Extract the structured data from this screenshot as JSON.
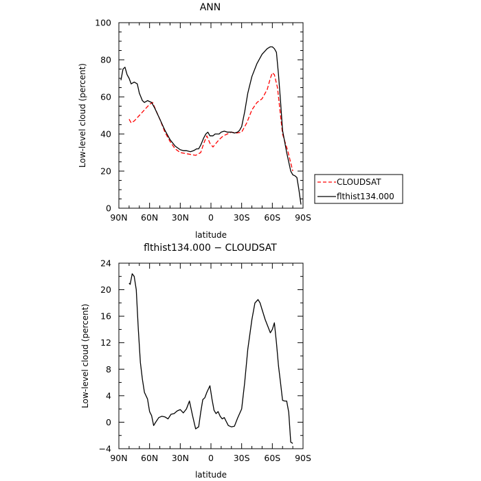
{
  "chart_data": [
    {
      "type": "line",
      "title": "ANN",
      "xlabel": "latitude",
      "ylabel": "Low-level cloud (percent)",
      "xlim": [
        90,
        -90
      ],
      "ylim": [
        0,
        100
      ],
      "x_ticks": [
        90,
        60,
        30,
        0,
        -30,
        -60,
        -90
      ],
      "x_tick_labels": [
        "90N",
        "60N",
        "30N",
        "0",
        "30S",
        "60S",
        "90S"
      ],
      "y_ticks": [
        0,
        20,
        40,
        60,
        80,
        100
      ],
      "y_tick_labels": [
        "0",
        "20",
        "40",
        "60",
        "80",
        "100"
      ],
      "legend_position": "right",
      "series": [
        {
          "name": "CLOUDSAT",
          "style": "dashed",
          "color": "#ff0000",
          "x": [
            80,
            78,
            75,
            70,
            65,
            60,
            57,
            54,
            50,
            45,
            40,
            35,
            30,
            25,
            20,
            15,
            10,
            7,
            4,
            1,
            -2,
            -5,
            -8,
            -12,
            -16,
            -20,
            -25,
            -30,
            -35,
            -40,
            -45,
            -50,
            -55,
            -58,
            -60,
            -62,
            -65,
            -70,
            -75,
            -80
          ],
          "y": [
            48,
            46,
            47,
            50,
            53,
            56,
            57,
            53,
            48,
            41,
            36,
            32,
            30,
            29.5,
            29,
            28.5,
            30,
            35,
            39,
            35,
            33,
            35,
            37,
            39,
            40,
            41,
            40.5,
            41,
            46,
            53,
            57,
            59,
            64,
            70,
            73,
            72,
            65,
            40,
            31,
            20
          ]
        },
        {
          "name": "flthist134.000",
          "style": "solid",
          "color": "#000000",
          "x": [
            88,
            86,
            84,
            82,
            80,
            78,
            75,
            72,
            70,
            67,
            65,
            62,
            58,
            55,
            50,
            45,
            40,
            35,
            30,
            27,
            24,
            20,
            17,
            14,
            12,
            10,
            7,
            5,
            3,
            1,
            -2,
            -4,
            -6,
            -8,
            -10,
            -13,
            -16,
            -20,
            -23,
            -26,
            -28,
            -30,
            -33,
            -36,
            -40,
            -45,
            -50,
            -55,
            -58,
            -60,
            -62,
            -64,
            -66,
            -68,
            -70,
            -74,
            -78,
            -80,
            -82,
            -84,
            -86,
            -88
          ],
          "y": [
            69,
            75,
            76,
            72,
            70,
            67,
            68,
            67,
            62,
            58,
            57,
            58,
            57,
            54,
            48,
            42,
            37,
            33.5,
            31.5,
            31,
            31,
            30.5,
            31,
            32,
            32,
            34,
            38,
            40,
            41,
            39,
            39,
            40,
            40,
            40,
            41,
            41.5,
            41,
            41,
            40.5,
            41,
            42,
            44,
            52,
            62,
            71,
            78,
            83,
            86,
            87,
            87,
            86,
            84,
            72,
            58,
            42,
            30,
            20,
            18,
            17.5,
            16.5,
            10,
            2
          ]
        }
      ]
    },
    {
      "type": "line",
      "title": "flthist134.000 − CLOUDSAT",
      "xlabel": "latitude",
      "ylabel": "Low-level cloud (percent)",
      "xlim": [
        90,
        -90
      ],
      "ylim": [
        -4,
        24
      ],
      "x_ticks": [
        90,
        60,
        30,
        0,
        -30,
        -60,
        -90
      ],
      "x_tick_labels": [
        "90N",
        "60N",
        "30N",
        "0",
        "30S",
        "60S",
        "90S"
      ],
      "y_ticks": [
        -4,
        0,
        4,
        8,
        12,
        16,
        20,
        24
      ],
      "y_tick_labels": [
        "−4",
        "0",
        "4",
        "8",
        "12",
        "16",
        "20",
        "24"
      ],
      "series": [
        {
          "style": "solid",
          "color": "#000000",
          "x": [
            80,
            79,
            77,
            75,
            73,
            71,
            69,
            67,
            65,
            62,
            60,
            58,
            56,
            54,
            51,
            48,
            45,
            42,
            39,
            36,
            33,
            30,
            27,
            24,
            21,
            18,
            15,
            12,
            10,
            8,
            6,
            4,
            1,
            -1,
            -3,
            -5,
            -7,
            -9,
            -11,
            -13,
            -15,
            -17,
            -20,
            -23,
            -26,
            -30,
            -33,
            -36,
            -40,
            -43,
            -46,
            -48,
            -50,
            -53,
            -56,
            -58,
            -60,
            -62,
            -64,
            -66,
            -68,
            -70,
            -72,
            -74,
            -76,
            -78,
            -80
          ],
          "y": [
            21.0,
            20.8,
            22.4,
            22.0,
            20.0,
            14.0,
            9.0,
            6.5,
            4.5,
            3.5,
            1.6,
            1.0,
            -0.5,
            0.0,
            0.7,
            0.9,
            0.8,
            0.5,
            1.2,
            1.3,
            1.7,
            1.9,
            1.4,
            2.0,
            3.2,
            1.0,
            -1.0,
            -0.7,
            1.5,
            3.4,
            3.7,
            4.5,
            5.5,
            3.5,
            1.8,
            1.3,
            1.6,
            0.9,
            0.5,
            0.7,
            0.1,
            -0.5,
            -0.7,
            -0.6,
            0.6,
            2.0,
            6.0,
            11.0,
            15.5,
            18.0,
            18.5,
            18.0,
            17.0,
            15.5,
            14.3,
            13.5,
            14.0,
            15.0,
            12.0,
            8.5,
            6.0,
            3.3,
            3.2,
            3.2,
            1.5,
            -3.0,
            -3.2
          ]
        }
      ]
    }
  ]
}
